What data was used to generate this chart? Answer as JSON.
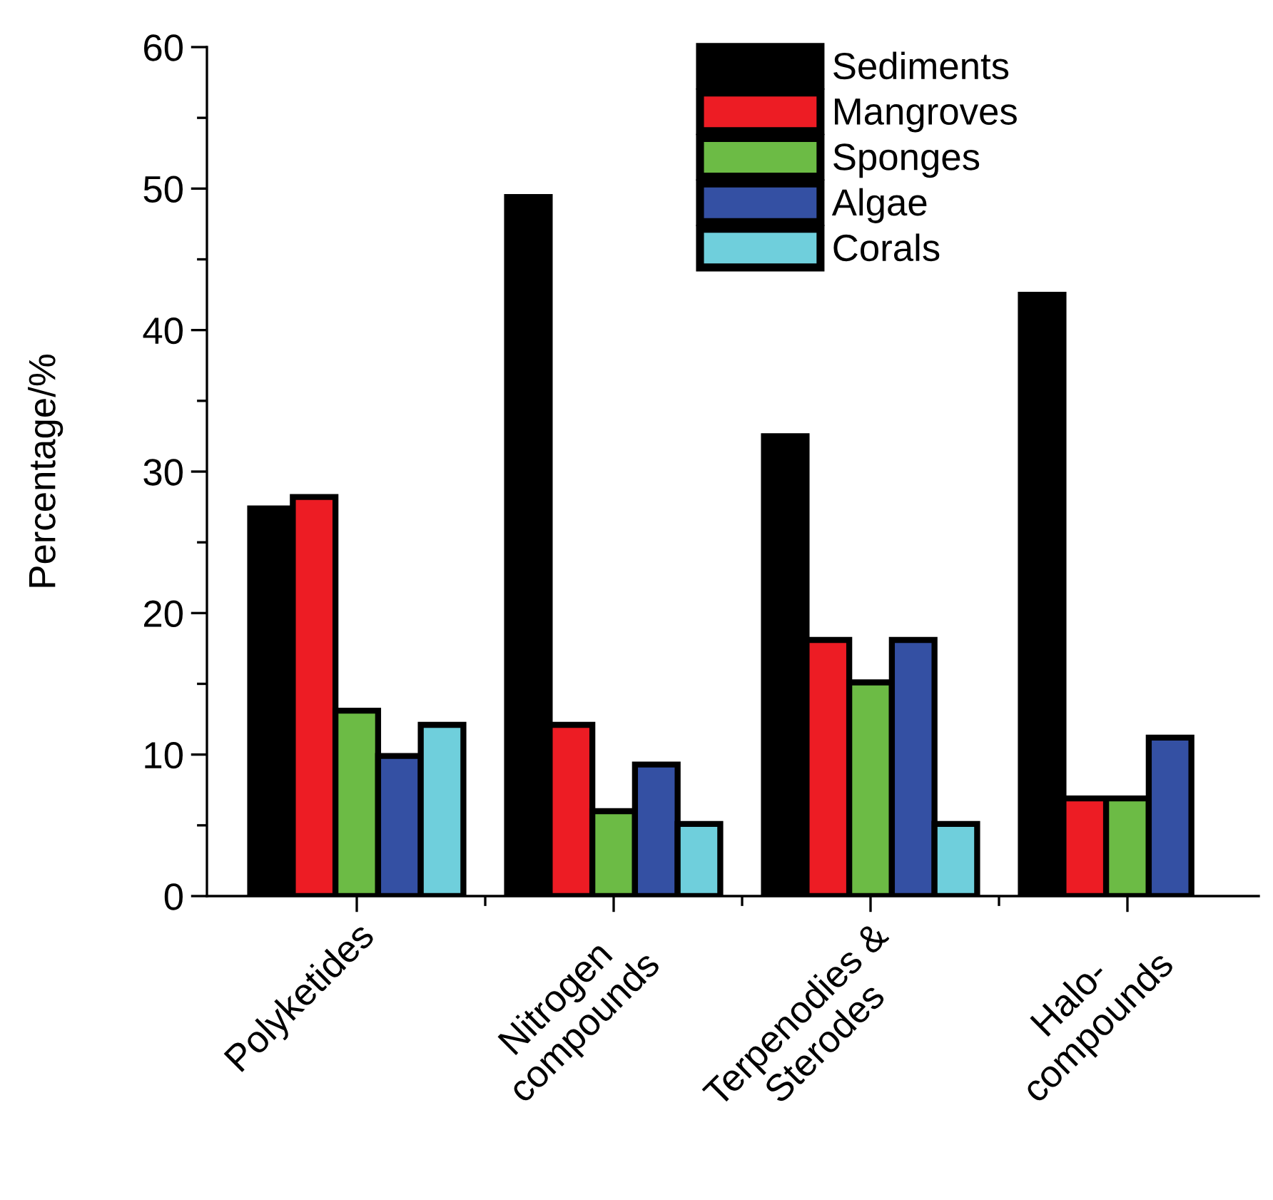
{
  "chart_data": {
    "type": "bar",
    "ylabel": "Percentage/%",
    "categories": [
      "Polyketides",
      "Nitrogen\ncompounds",
      "Terpenodies &\nSterodes",
      "Halo-\ncompounds"
    ],
    "series": [
      {
        "name": "Sediments",
        "color": "#000000",
        "values": [
          27.4,
          49.4,
          32.5,
          42.5
        ]
      },
      {
        "name": "Mangroves",
        "color": "#ed1c24",
        "values": [
          28.2,
          12.1,
          18.1,
          6.9
        ]
      },
      {
        "name": "Sponges",
        "color": "#6cbb45",
        "values": [
          13.1,
          6.0,
          15.1,
          6.9
        ]
      },
      {
        "name": "Algae",
        "color": "#3450a3",
        "values": [
          9.9,
          9.3,
          18.1,
          11.2
        ]
      },
      {
        "name": "Corals",
        "color": "#6fcfdc",
        "values": [
          12.1,
          5.1,
          5.1,
          null
        ]
      }
    ],
    "ylim": [
      0,
      60
    ],
    "yticks": [
      0,
      10,
      20,
      30,
      40,
      50,
      60
    ],
    "grid": false,
    "legend": "top"
  }
}
